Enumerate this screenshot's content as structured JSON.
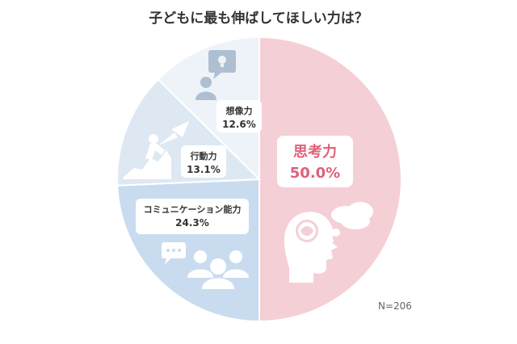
{
  "chart_data": {
    "type": "pie",
    "title": "子どもに最も伸ばしてほしい力は？",
    "note": "N=206",
    "slices": [
      {
        "label": "思考力",
        "value": 50.0,
        "value_label": "50.0%",
        "color": "#f5cfd6",
        "label_color": "#e0607a",
        "icon": "brain-thinking-icon"
      },
      {
        "label": "コミュニケーション能力",
        "value": 24.3,
        "value_label": "24.3%",
        "color": "#c9dcef",
        "label_color": "#333333",
        "icon": "people-chat-icon"
      },
      {
        "label": "行動力",
        "value": 13.1,
        "value_label": "13.1%",
        "color": "#dde8f3",
        "label_color": "#333333",
        "icon": "climbing-person-icon"
      },
      {
        "label": "想像力",
        "value": 12.6,
        "value_label": "12.6%",
        "color": "#eef3f9",
        "label_color": "#333333",
        "icon": "person-idea-icon"
      }
    ]
  }
}
